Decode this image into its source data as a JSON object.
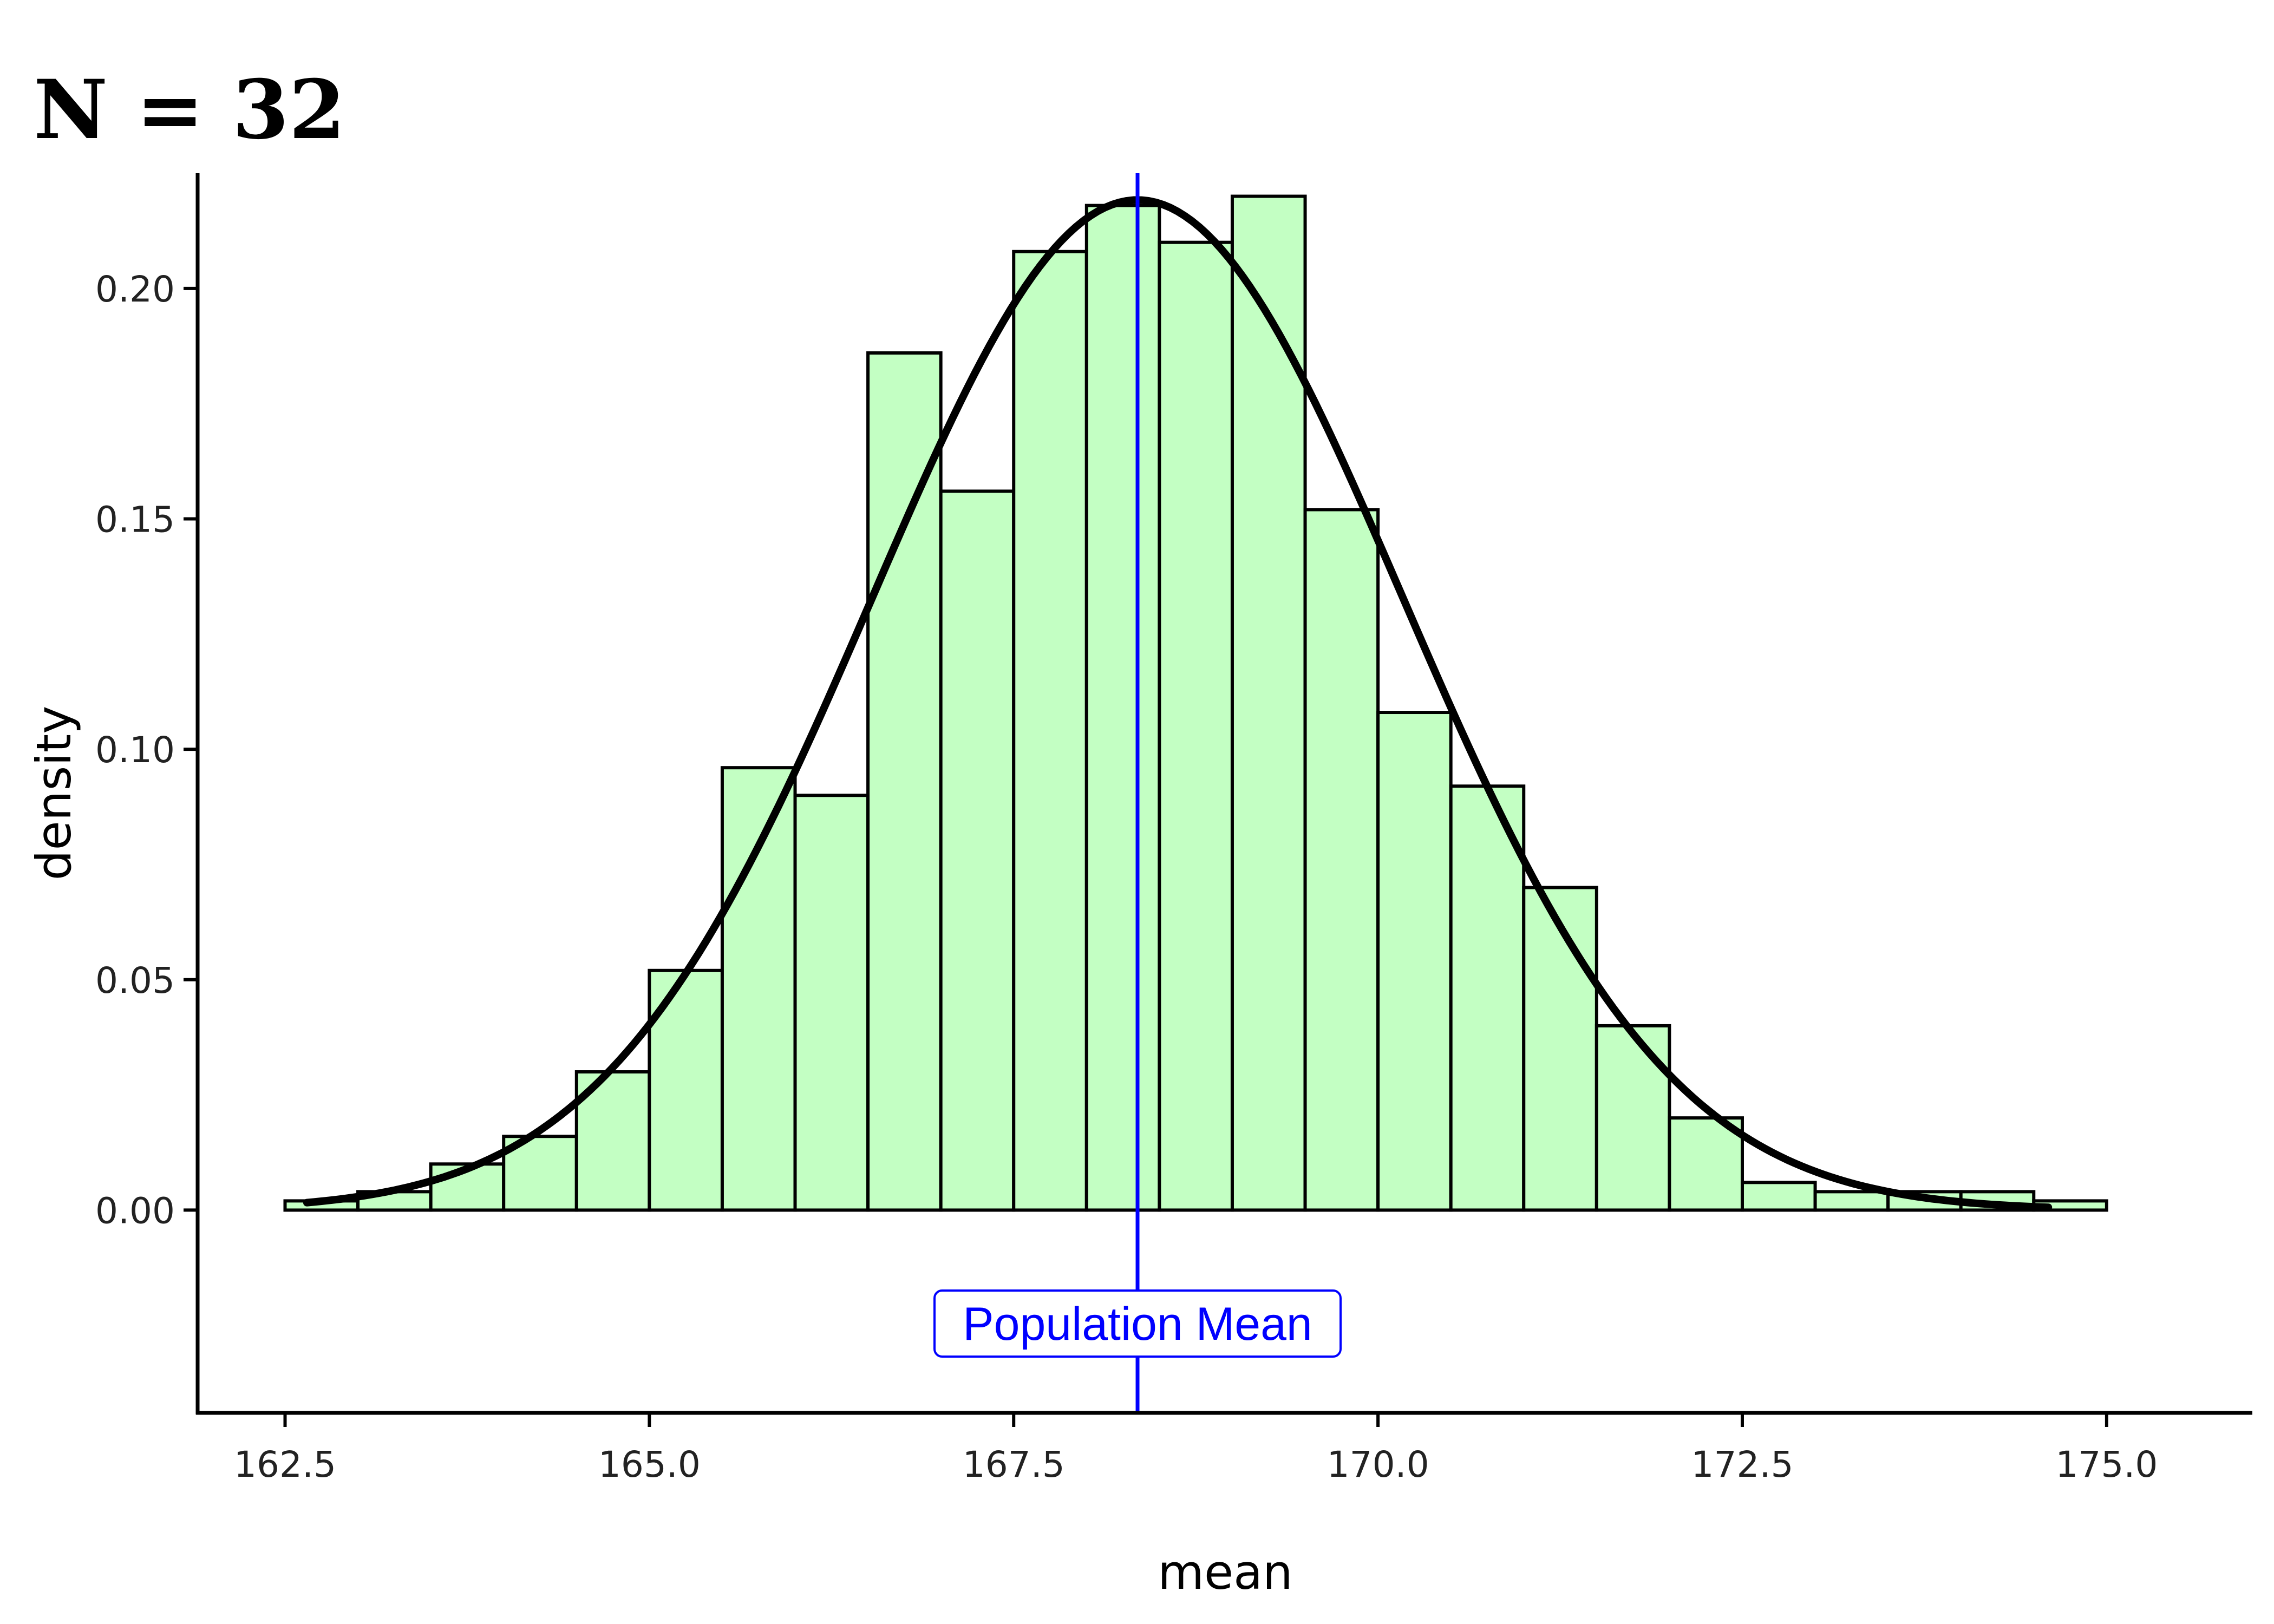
{
  "chart_data": {
    "type": "bar",
    "title": "N = 32",
    "xlabel": "mean",
    "ylabel": "density",
    "xlim": [
      161.9,
      176.0
    ],
    "ylim": [
      -0.044,
      0.225
    ],
    "x_ticks": [
      "162.5",
      "165.0",
      "167.5",
      "170.0",
      "172.5",
      "175.0"
    ],
    "y_ticks": [
      "0.00",
      "0.05",
      "0.10",
      "0.15",
      "0.20"
    ],
    "grid": false,
    "bin_width": 0.5,
    "bins": [
      {
        "start": 162.5,
        "end": 163.0,
        "density": 0.002
      },
      {
        "start": 163.0,
        "end": 163.5,
        "density": 0.004
      },
      {
        "start": 163.5,
        "end": 164.0,
        "density": 0.01
      },
      {
        "start": 164.0,
        "end": 164.5,
        "density": 0.016
      },
      {
        "start": 164.5,
        "end": 165.0,
        "density": 0.03
      },
      {
        "start": 165.0,
        "end": 165.5,
        "density": 0.052
      },
      {
        "start": 165.5,
        "end": 166.0,
        "density": 0.096
      },
      {
        "start": 166.0,
        "end": 166.5,
        "density": 0.09
      },
      {
        "start": 166.5,
        "end": 167.0,
        "density": 0.186
      },
      {
        "start": 167.0,
        "end": 167.5,
        "density": 0.156
      },
      {
        "start": 167.5,
        "end": 168.0,
        "density": 0.208
      },
      {
        "start": 168.0,
        "end": 168.5,
        "density": 0.218
      },
      {
        "start": 168.5,
        "end": 169.0,
        "density": 0.21
      },
      {
        "start": 169.0,
        "end": 169.5,
        "density": 0.22
      },
      {
        "start": 169.5,
        "end": 170.0,
        "density": 0.152
      },
      {
        "start": 170.0,
        "end": 170.5,
        "density": 0.108
      },
      {
        "start": 170.5,
        "end": 171.0,
        "density": 0.092
      },
      {
        "start": 171.0,
        "end": 171.5,
        "density": 0.07
      },
      {
        "start": 171.5,
        "end": 172.0,
        "density": 0.04
      },
      {
        "start": 172.0,
        "end": 172.5,
        "density": 0.02
      },
      {
        "start": 172.5,
        "end": 173.0,
        "density": 0.006
      },
      {
        "start": 173.0,
        "end": 173.5,
        "density": 0.004
      },
      {
        "start": 173.5,
        "end": 174.0,
        "density": 0.004
      },
      {
        "start": 174.0,
        "end": 174.5,
        "density": 0.004
      },
      {
        "start": 174.5,
        "end": 175.0,
        "density": 0.002
      }
    ],
    "normal_curve": {
      "mean": 168.35,
      "sd": 1.82,
      "x_range": [
        162.65,
        174.6
      ]
    },
    "population_mean": 168.35,
    "annotation": "Population Mean",
    "colors": {
      "bar_fill": "#c3ffc3",
      "bar_stroke": "#000000",
      "curve": "#000000",
      "mean_line": "#0000ff",
      "annotation_text": "#0000ff",
      "annotation_border": "#0000ff",
      "axis": "#000000"
    }
  }
}
